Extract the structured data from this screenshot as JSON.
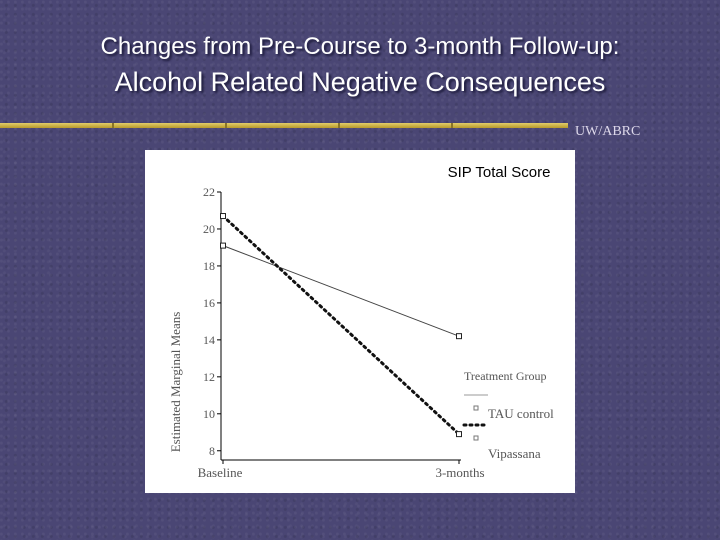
{
  "slide": {
    "title_line1": "Changes from Pre-Course to 3-month Follow-up:",
    "title_line2": "Alcohol Related Negative Consequences",
    "credit": "UW/ABRC"
  },
  "colors": {
    "background": "#4a4674",
    "rule": "#d4bb4a",
    "panel": "#ffffff"
  },
  "chart_data": {
    "type": "line",
    "title": "SIP Total Score",
    "xlabel": "",
    "ylabel": "Estimated Marginal Means",
    "categories": [
      "Baseline",
      "3-months"
    ],
    "yticks": [
      "8",
      "10",
      "12",
      "14",
      "16",
      "18",
      "20",
      "22"
    ],
    "ylim": [
      7.5,
      22
    ],
    "legend_title": "Treatment Group",
    "legend_position": "bottom-right",
    "series": [
      {
        "name": "TAU control",
        "style": "solid",
        "values": [
          19.1,
          14.2
        ]
      },
      {
        "name": "Vipassana",
        "style": "dotted",
        "values": [
          20.7,
          8.9
        ]
      }
    ]
  }
}
